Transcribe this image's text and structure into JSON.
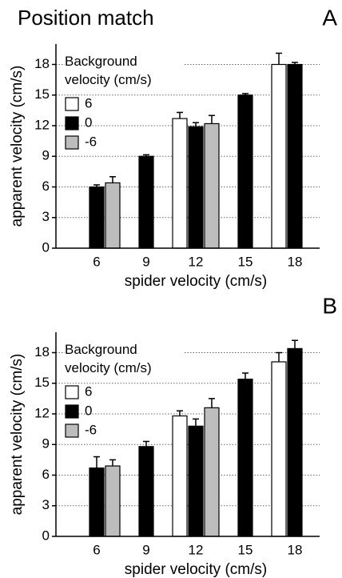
{
  "chart_data": [
    {
      "type": "bar",
      "title": "Position match",
      "panel": "A",
      "xlabel": "spider velocity (cm/s)",
      "ylabel": "apparent velocity (cm/s)",
      "legend_title": "Background velocity (cm/s)",
      "categories": [
        "6",
        "9",
        "12",
        "15",
        "18"
      ],
      "series": [
        {
          "name": "6",
          "color": "#ffffff",
          "values": [
            null,
            null,
            12.7,
            null,
            18.0
          ],
          "errors": [
            null,
            null,
            0.6,
            null,
            1.1
          ]
        },
        {
          "name": "0",
          "color": "#000000",
          "values": [
            6.0,
            9.0,
            11.9,
            15.0,
            18.0
          ],
          "errors": [
            0.2,
            0.15,
            0.4,
            0.15,
            0.2
          ]
        },
        {
          "name": "-6",
          "color": "#bdbdbd",
          "values": [
            6.4,
            null,
            12.2,
            null,
            null
          ],
          "errors": [
            0.6,
            null,
            0.8,
            null,
            null
          ]
        }
      ],
      "ylim": [
        0,
        20
      ],
      "yticks": [
        0,
        3,
        6,
        9,
        12,
        15,
        18
      ],
      "grid": true
    },
    {
      "type": "bar",
      "panel": "B",
      "xlabel": "spider velocity (cm/s)",
      "ylabel": "apparent velocity (cm/s)",
      "legend_title": "Background velocity (cm/s)",
      "categories": [
        "6",
        "9",
        "12",
        "15",
        "18"
      ],
      "series": [
        {
          "name": "6",
          "color": "#ffffff",
          "values": [
            null,
            null,
            11.8,
            null,
            17.1
          ],
          "errors": [
            null,
            null,
            0.5,
            null,
            0.9
          ]
        },
        {
          "name": "0",
          "color": "#000000",
          "values": [
            6.7,
            8.8,
            10.8,
            15.4,
            18.4
          ],
          "errors": [
            1.1,
            0.5,
            0.7,
            0.6,
            0.8
          ]
        },
        {
          "name": "-6",
          "color": "#bdbdbd",
          "values": [
            6.9,
            null,
            12.6,
            null,
            null
          ],
          "errors": [
            0.6,
            null,
            0.9,
            null,
            null
          ]
        }
      ],
      "ylim": [
        0,
        20
      ],
      "yticks": [
        0,
        3,
        6,
        9,
        12,
        15,
        18
      ],
      "grid": true
    }
  ]
}
